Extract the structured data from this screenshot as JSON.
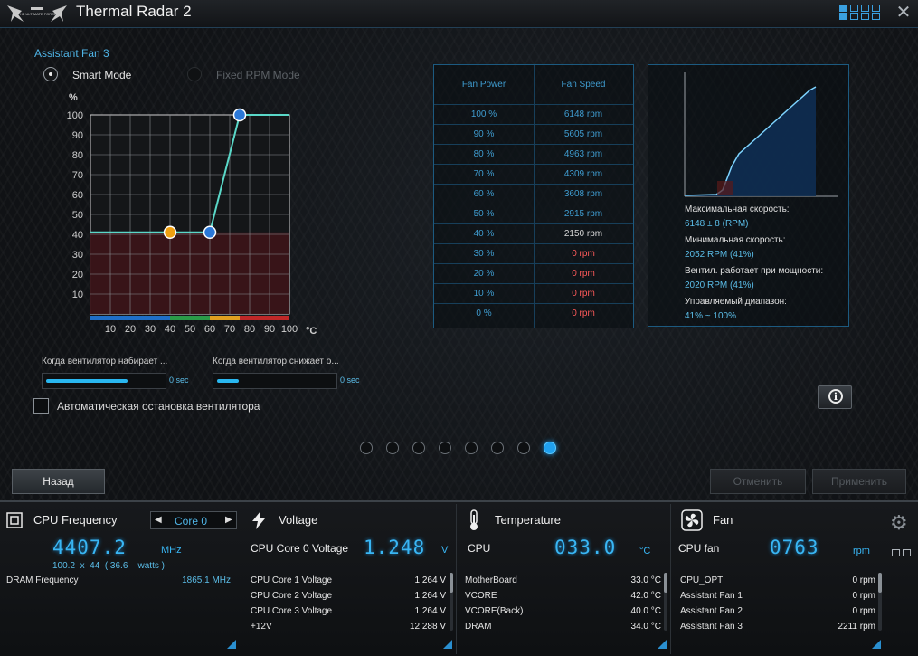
{
  "window": {
    "logo_text": "THE ULTIMATE FORCE",
    "title": "Thermal Radar 2",
    "close_icon": "close-icon",
    "layout_icon": "layout-grid-icon"
  },
  "fan_panel": {
    "fan_name": "Assistant Fan 3",
    "mode_smart": "Smart Mode",
    "mode_fixed": "Fixed RPM Mode",
    "selected_mode": "Smart Mode",
    "y_unit": "%",
    "x_unit": "°C",
    "rise_label": "Когда вентилятор набирает ...",
    "rise_value": "0 sec",
    "fall_label": "Когда вентилятор снижает о...",
    "fall_value": "0 sec",
    "autostop_label": "Автоматическая остановка вентилятора",
    "autostop_checked": false
  },
  "chart_data": {
    "type": "line",
    "title": "",
    "xlabel": "°C",
    "ylabel": "%",
    "xlim": [
      0,
      100
    ],
    "ylim": [
      0,
      100
    ],
    "x_ticks": [
      10,
      20,
      30,
      40,
      50,
      60,
      70,
      80,
      90,
      100
    ],
    "y_ticks": [
      10,
      20,
      30,
      40,
      50,
      60,
      70,
      80,
      90,
      100
    ],
    "grid": true,
    "series": [
      {
        "points": [
          [
            0,
            41
          ],
          [
            40,
            41
          ],
          [
            60,
            41
          ],
          [
            75,
            100
          ],
          [
            100,
            100
          ]
        ]
      }
    ],
    "control_points": [
      [
        40,
        41
      ],
      [
        60,
        41
      ],
      [
        75,
        100
      ]
    ],
    "zones": [
      {
        "from": 0,
        "to": 40,
        "color": "#1f6fc8"
      },
      {
        "from": 40,
        "to": 60,
        "color": "#2a9a48"
      },
      {
        "from": 60,
        "to": 75,
        "color": "#e0a020"
      },
      {
        "from": 75,
        "to": 100,
        "color": "#c02828"
      }
    ],
    "line_color": "#5ad8c8",
    "fill_color": "#3a1418"
  },
  "speed_table": {
    "headers": [
      "Fan Power",
      "Fan Speed"
    ],
    "rows": [
      {
        "power": "100 %",
        "speed": "6148 rpm",
        "zero": false
      },
      {
        "power": "90 %",
        "speed": "5605 rpm",
        "zero": false
      },
      {
        "power": "80 %",
        "speed": "4963 rpm",
        "zero": false
      },
      {
        "power": "70 %",
        "speed": "4309 rpm",
        "zero": false
      },
      {
        "power": "60 %",
        "speed": "3608 rpm",
        "zero": false
      },
      {
        "power": "50 %",
        "speed": "2915 rpm",
        "zero": false
      },
      {
        "power": "40 %",
        "speed": "2150 rpm",
        "zero": false
      },
      {
        "power": "30 %",
        "speed": "0 rpm",
        "zero": true
      },
      {
        "power": "20 %",
        "speed": "0 rpm",
        "zero": true
      },
      {
        "power": "10 %",
        "speed": "0 rpm",
        "zero": true
      },
      {
        "power": "0 %",
        "speed": "0 rpm",
        "zero": true
      }
    ]
  },
  "fan_info": {
    "max_label": "Максимальная скорость:",
    "max_value": "6148 ± 8 (RPM)",
    "min_label": "Минимальная скорость:",
    "min_value": "2052 RPM (41%)",
    "start_label": "Вентил. работает при мощности:",
    "start_value": "2020 RPM (41%)",
    "range_label": "Управляемый диапазон:",
    "range_value": "41% ~ 100%",
    "info_icon": "info-icon"
  },
  "pagination": {
    "count": 8,
    "active": 8
  },
  "buttons": {
    "back": "Назад",
    "cancel": "Отменить",
    "apply": "Применить"
  },
  "monitor": {
    "cpu": {
      "title": "CPU Frequency",
      "core_select": "Core 0",
      "value": "4407.2",
      "unit": "MHz",
      "detail": "100.2  x  44  ( 36.6    watts )",
      "dram_label": "DRAM Frequency",
      "dram_value": "1865.1  MHz"
    },
    "voltage": {
      "title": "Voltage",
      "main_label": "CPU Core 0 Voltage",
      "value": "1.248",
      "unit": "V",
      "rows": [
        {
          "name": "CPU Core 1 Voltage",
          "value": "1.264  V"
        },
        {
          "name": "CPU Core 2 Voltage",
          "value": "1.264  V"
        },
        {
          "name": "CPU Core 3 Voltage",
          "value": "1.264  V"
        },
        {
          "name": "+12V",
          "value": "12.288  V"
        }
      ]
    },
    "temperature": {
      "title": "Temperature",
      "main_label": "CPU",
      "value": "033.0",
      "unit": "°C",
      "rows": [
        {
          "name": "MotherBoard",
          "value": "33.0 °C"
        },
        {
          "name": "VCORE",
          "value": "42.0 °C"
        },
        {
          "name": "VCORE(Back)",
          "value": "40.0 °C"
        },
        {
          "name": "DRAM",
          "value": "34.0 °C"
        }
      ]
    },
    "fan": {
      "title": "Fan",
      "main_label": "CPU fan",
      "value": "0763",
      "unit": "rpm",
      "rows": [
        {
          "name": "CPU_OPT",
          "value": "0  rpm"
        },
        {
          "name": "Assistant Fan 1",
          "value": "0  rpm"
        },
        {
          "name": "Assistant Fan 2",
          "value": "0  rpm"
        },
        {
          "name": "Assistant Fan 3",
          "value": "2211  rpm"
        }
      ]
    }
  }
}
